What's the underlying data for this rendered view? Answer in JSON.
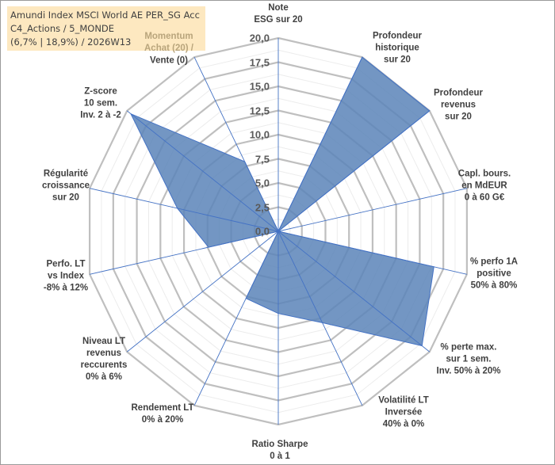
{
  "title": "Amundi Index MSCI World AE PER_SG Acc\nC4_Actions / 5_MONDE\n(6,7% | 18,9%) / 2026W13",
  "chart_data": {
    "type": "radar",
    "rlim": [
      0,
      20
    ],
    "ticks": [
      "0,0",
      "2,5",
      "5,0",
      "7,5",
      "10,0",
      "12,5",
      "15,0",
      "17,5",
      "20,0"
    ],
    "tick_values": [
      0,
      2.5,
      5,
      7.5,
      10,
      12.5,
      15,
      17.5,
      20
    ],
    "grid": true,
    "axes": [
      "Note\nESG sur 20",
      "Profondeur\nhistorique\nsur 20",
      "Profondeur\nrevenus\nsur 20",
      "Capl. bours.\nen MdEUR\n0 à 60 G€",
      "% perfo 1A\npositive\n50% à 80%",
      "% perte max.\nsur 1 sem.\nInv. 50% à 20%",
      "Volatilité LT\nInversée\n40% à 0%",
      "Ratio Sharpe\n0 à 1",
      "Rendement LT\n0% à 20%",
      "Niveau LT\nrevenus\nreccurents\n0% à 6%",
      "Perfo. LT\nvs Index\n-8% à 12%",
      "Régularité\ncroissance\nsur 20",
      "Z-score\n10 sem.\nInv. 2 à -2",
      "Vente (0)"
    ],
    "momentum_label_top": "Momentum\nAchat (20) /",
    "values": [
      0,
      20,
      20,
      0,
      16.5,
      19,
      10.5,
      8.5,
      7.7,
      0,
      7.4,
      10.7,
      19.5,
      8
    ],
    "colors": {
      "fill": "#5b84b8",
      "stroke": "#4472c4",
      "grid": "#bfbfbf",
      "axis": "#4472c4"
    }
  }
}
